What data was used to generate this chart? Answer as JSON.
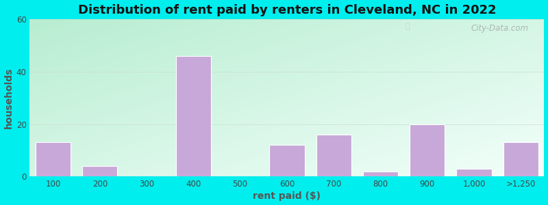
{
  "title": "Distribution of rent paid by renters in Cleveland, NC in 2022",
  "xlabel": "rent paid ($)",
  "ylabel": "households",
  "categories": [
    "100",
    "200",
    "300",
    "400",
    "500",
    "600",
    "700",
    "800",
    "900",
    "1,000",
    ">1,250"
  ],
  "values": [
    13,
    4,
    0,
    46,
    0,
    12,
    16,
    2,
    20,
    3,
    13
  ],
  "bar_color": "#C8A8D8",
  "ylim": [
    0,
    60
  ],
  "yticks": [
    0,
    20,
    40,
    60
  ],
  "title_fontsize": 13,
  "axis_label_fontsize": 10,
  "tick_fontsize": 8.5,
  "watermark_text": "City-Data.com",
  "outer_bg": "#00EEEE",
  "bg_color_topleft": "#c8eee0",
  "bg_color_topright": "#e8f8f0",
  "bg_color_bottomleft": "#e0f5e8",
  "bg_color_bottomright": "#f8fff8"
}
